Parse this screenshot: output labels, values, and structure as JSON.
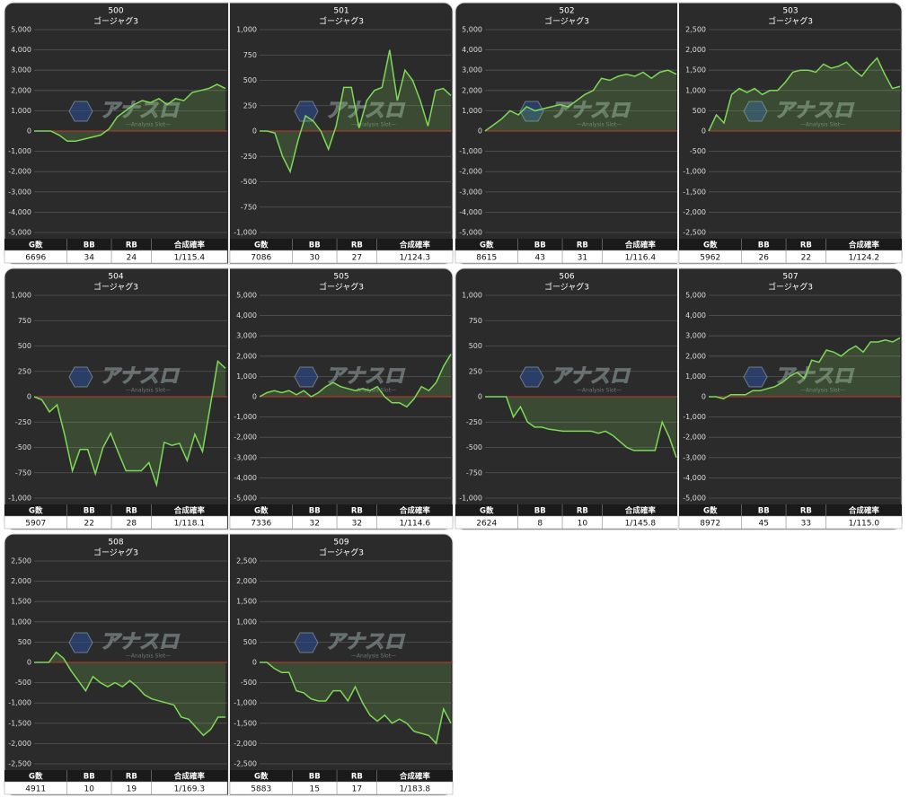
{
  "watermark": {
    "title": "アナスロ",
    "subtitle": "—Analysis Slot—"
  },
  "chart_data": [
    {
      "type": "line",
      "title": "500",
      "subtitle": "ゴージャグ3",
      "color": "#7ed957",
      "zero_color": "#c0392b",
      "grid": true,
      "ylim": [
        -5000,
        5000
      ],
      "yticks": [
        {
          "value": 5000,
          "label": "5,000"
        },
        {
          "value": 4000,
          "label": "4,000"
        },
        {
          "value": 3000,
          "label": "3,000"
        },
        {
          "value": 2000,
          "label": "2,000"
        },
        {
          "value": 1000,
          "label": "1,000"
        },
        0,
        {
          "value": -1000,
          "label": "-1,000"
        },
        {
          "value": -2000,
          "label": "-2,000"
        },
        {
          "value": -3000,
          "label": "-3,000"
        },
        {
          "value": -4000,
          "label": "-4,000"
        },
        {
          "value": -5000,
          "label": "-5,000"
        }
      ],
      "values": [
        0,
        0,
        0,
        -200,
        -500,
        -500,
        -400,
        -300,
        -200,
        100,
        700,
        1000,
        1300,
        1500,
        1400,
        1600,
        1300,
        1600,
        1500,
        1900,
        2000,
        2100,
        2300,
        2100
      ],
      "table": {
        "headers": [
          "G数",
          "BB",
          "RB",
          "合成確率"
        ],
        "values": [
          6696,
          34,
          24,
          "1/115.4"
        ]
      }
    },
    {
      "type": "line",
      "title": "501",
      "subtitle": "ゴージャグ3",
      "color": "#7ed957",
      "zero_color": "#c0392b",
      "grid": true,
      "ylim": [
        -1000,
        1000
      ],
      "yticks": [
        {
          "value": 1000,
          "label": "1,000"
        },
        750,
        500,
        250,
        0,
        -250,
        -500,
        -750,
        {
          "value": -1000,
          "label": "-1,000"
        }
      ],
      "values": [
        0,
        0,
        -20,
        -250,
        -400,
        -100,
        150,
        100,
        0,
        -180,
        50,
        430,
        430,
        30,
        300,
        400,
        430,
        800,
        300,
        600,
        500,
        300,
        50,
        400,
        420,
        350
      ],
      "table": {
        "headers": [
          "G数",
          "BB",
          "RB",
          "合成確率"
        ],
        "values": [
          7086,
          30,
          27,
          "1/124.3"
        ]
      }
    },
    {
      "type": "line",
      "title": "502",
      "subtitle": "ゴージャグ3",
      "color": "#7ed957",
      "zero_color": "#c0392b",
      "grid": true,
      "ylim": [
        -5000,
        5000
      ],
      "yticks": [
        {
          "value": 5000,
          "label": "5,000"
        },
        {
          "value": 4000,
          "label": "4,000"
        },
        {
          "value": 3000,
          "label": "3,000"
        },
        {
          "value": 2000,
          "label": "2,000"
        },
        {
          "value": 1000,
          "label": "1,000"
        },
        0,
        {
          "value": -1000,
          "label": "-1,000"
        },
        {
          "value": -2000,
          "label": "-2,000"
        },
        {
          "value": -3000,
          "label": "-3,000"
        },
        {
          "value": -4000,
          "label": "-4,000"
        },
        {
          "value": -5000,
          "label": "-5,000"
        }
      ],
      "values": [
        0,
        300,
        600,
        1000,
        800,
        1200,
        1000,
        1100,
        1200,
        1300,
        1200,
        1500,
        1800,
        2000,
        2600,
        2500,
        2700,
        2800,
        2700,
        2900,
        2600,
        2900,
        3000,
        2800
      ],
      "table": {
        "headers": [
          "G数",
          "BB",
          "RB",
          "合成確率"
        ],
        "values": [
          8615,
          43,
          31,
          "1/116.4"
        ]
      }
    },
    {
      "type": "line",
      "title": "503",
      "subtitle": "ゴージャグ3",
      "color": "#7ed957",
      "zero_color": "#c0392b",
      "grid": true,
      "ylim": [
        -2500,
        2500
      ],
      "yticks": [
        {
          "value": 2500,
          "label": "2,500"
        },
        {
          "value": 2000,
          "label": "2,000"
        },
        {
          "value": 1500,
          "label": "1,500"
        },
        {
          "value": 1000,
          "label": "1,000"
        },
        500,
        0,
        -500,
        {
          "value": -1000,
          "label": "-1,000"
        },
        {
          "value": -1500,
          "label": "-1,500"
        },
        {
          "value": -2000,
          "label": "-2,000"
        },
        {
          "value": -2500,
          "label": "-2,500"
        }
      ],
      "values": [
        0,
        400,
        200,
        900,
        1050,
        950,
        1050,
        900,
        1000,
        1000,
        1200,
        1450,
        1500,
        1500,
        1450,
        1650,
        1550,
        1600,
        1700,
        1500,
        1350,
        1600,
        1800,
        1400,
        1050,
        1100
      ],
      "table": {
        "headers": [
          "G数",
          "BB",
          "RB",
          "合成確率"
        ],
        "values": [
          5962,
          26,
          22,
          "1/124.2"
        ]
      }
    },
    {
      "type": "line",
      "title": "504",
      "subtitle": "ゴージャグ3",
      "color": "#7ed957",
      "zero_color": "#c0392b",
      "grid": true,
      "ylim": [
        -1000,
        1000
      ],
      "yticks": [
        {
          "value": 1000,
          "label": "1,000"
        },
        750,
        500,
        250,
        0,
        -250,
        -500,
        -750,
        {
          "value": -1000,
          "label": "-1,000"
        }
      ],
      "values": [
        0,
        -30,
        -150,
        -80,
        -380,
        -730,
        -520,
        -520,
        -760,
        -500,
        -360,
        -550,
        -730,
        -730,
        -730,
        -650,
        -870,
        -450,
        -480,
        -460,
        -630,
        -370,
        -540,
        -100,
        350,
        280
      ],
      "table": {
        "headers": [
          "G数",
          "BB",
          "RB",
          "合成確率"
        ],
        "values": [
          5907,
          22,
          28,
          "1/118.1"
        ]
      }
    },
    {
      "type": "line",
      "title": "505",
      "subtitle": "ゴージャグ3",
      "color": "#7ed957",
      "zero_color": "#c0392b",
      "grid": true,
      "ylim": [
        -5000,
        5000
      ],
      "yticks": [
        {
          "value": 5000,
          "label": "5,000"
        },
        {
          "value": 4000,
          "label": "4,000"
        },
        {
          "value": 3000,
          "label": "3,000"
        },
        {
          "value": 2000,
          "label": "2,000"
        },
        {
          "value": 1000,
          "label": "1,000"
        },
        0,
        {
          "value": -1000,
          "label": "-1,000"
        },
        {
          "value": -2000,
          "label": "-2,000"
        },
        {
          "value": -3000,
          "label": "-3,000"
        },
        {
          "value": -4000,
          "label": "-4,000"
        },
        {
          "value": -5000,
          "label": "-5,000"
        }
      ],
      "values": [
        0,
        200,
        300,
        200,
        300,
        100,
        300,
        0,
        200,
        500,
        700,
        500,
        400,
        300,
        400,
        300,
        500,
        0,
        -300,
        -300,
        -500,
        -100,
        500,
        300,
        700,
        1500,
        2100
      ],
      "table": {
        "headers": [
          "G数",
          "BB",
          "RB",
          "合成確率"
        ],
        "values": [
          7336,
          32,
          32,
          "1/114.6"
        ]
      }
    },
    {
      "type": "line",
      "title": "506",
      "subtitle": "ゴージャグ3",
      "color": "#7ed957",
      "zero_color": "#c0392b",
      "grid": true,
      "ylim": [
        -1000,
        1000
      ],
      "yticks": [
        {
          "value": 1000,
          "label": "1,000"
        },
        750,
        500,
        250,
        0,
        -250,
        -500,
        -750,
        {
          "value": -1000,
          "label": "-1,000"
        }
      ],
      "values": [
        0,
        0,
        0,
        0,
        -200,
        -100,
        -250,
        -300,
        -300,
        -320,
        -330,
        -340,
        -340,
        -340,
        -340,
        -340,
        -360,
        -340,
        -380,
        -440,
        -500,
        -530,
        -530,
        -530,
        -530,
        -250,
        -400,
        -600
      ],
      "table": {
        "headers": [
          "G数",
          "BB",
          "RB",
          "合成確率"
        ],
        "values": [
          2624,
          8,
          10,
          "1/145.8"
        ]
      }
    },
    {
      "type": "line",
      "title": "507",
      "subtitle": "ゴージャグ3",
      "color": "#7ed957",
      "zero_color": "#c0392b",
      "grid": true,
      "ylim": [
        -5000,
        5000
      ],
      "yticks": [
        {
          "value": 5000,
          "label": "5,000"
        },
        {
          "value": 4000,
          "label": "4,000"
        },
        {
          "value": 3000,
          "label": "3,000"
        },
        {
          "value": 2000,
          "label": "2,000"
        },
        {
          "value": 1000,
          "label": "1,000"
        },
        0,
        {
          "value": -1000,
          "label": "-1,000"
        },
        {
          "value": -2000,
          "label": "-2,000"
        },
        {
          "value": -3000,
          "label": "-3,000"
        },
        {
          "value": -4000,
          "label": "-4,000"
        },
        {
          "value": -5000,
          "label": "-5,000"
        }
      ],
      "values": [
        0,
        0,
        -100,
        100,
        100,
        100,
        300,
        300,
        400,
        500,
        700,
        1000,
        1200,
        900,
        1800,
        1700,
        2300,
        2200,
        2000,
        2300,
        2500,
        2200,
        2700,
        2700,
        2800,
        2700,
        2900
      ],
      "table": {
        "headers": [
          "G数",
          "BB",
          "RB",
          "合成確率"
        ],
        "values": [
          8972,
          45,
          33,
          "1/115.0"
        ]
      }
    },
    {
      "type": "line",
      "title": "508",
      "subtitle": "ゴージャグ3",
      "color": "#7ed957",
      "zero_color": "#c0392b",
      "grid": true,
      "ylim": [
        -2500,
        2500
      ],
      "yticks": [
        {
          "value": 2500,
          "label": "2,500"
        },
        {
          "value": 2000,
          "label": "2,000"
        },
        {
          "value": 1500,
          "label": "1,500"
        },
        {
          "value": 1000,
          "label": "1,000"
        },
        500,
        0,
        -500,
        {
          "value": -1000,
          "label": "-1,000"
        },
        {
          "value": -1500,
          "label": "-1,500"
        },
        {
          "value": -2000,
          "label": "-2,000"
        },
        {
          "value": -2500,
          "label": "-2,500"
        }
      ],
      "values": [
        0,
        0,
        0,
        250,
        100,
        -200,
        -450,
        -700,
        -350,
        -500,
        -600,
        -500,
        -600,
        -450,
        -600,
        -800,
        -900,
        -950,
        -1000,
        -1050,
        -1350,
        -1400,
        -1600,
        -1800,
        -1650,
        -1350,
        -1350
      ],
      "table": {
        "headers": [
          "G数",
          "BB",
          "RB",
          "合成確率"
        ],
        "values": [
          4911,
          10,
          19,
          "1/169.3"
        ]
      }
    },
    {
      "type": "line",
      "title": "509",
      "subtitle": "ゴージャグ3",
      "color": "#7ed957",
      "zero_color": "#c0392b",
      "grid": true,
      "ylim": [
        -2500,
        2500
      ],
      "yticks": [
        {
          "value": 2500,
          "label": "2,500"
        },
        {
          "value": 2000,
          "label": "2,000"
        },
        {
          "value": 1500,
          "label": "1,500"
        },
        {
          "value": 1000,
          "label": "1,000"
        },
        500,
        0,
        -500,
        {
          "value": -1000,
          "label": "-1,000"
        },
        {
          "value": -1500,
          "label": "-1,500"
        },
        {
          "value": -2000,
          "label": "-2,000"
        },
        {
          "value": -2500,
          "label": "-2,500"
        }
      ],
      "values": [
        0,
        0,
        -150,
        -250,
        -250,
        -700,
        -750,
        -900,
        -950,
        -950,
        -700,
        -700,
        -950,
        -600,
        -1000,
        -1300,
        -1450,
        -1300,
        -1500,
        -1400,
        -1500,
        -1700,
        -1750,
        -1800,
        -2000,
        -1150,
        -1500
      ],
      "table": {
        "headers": [
          "G数",
          "BB",
          "RB",
          "合成確率"
        ],
        "values": [
          5883,
          15,
          17,
          "1/183.8"
        ]
      }
    }
  ]
}
